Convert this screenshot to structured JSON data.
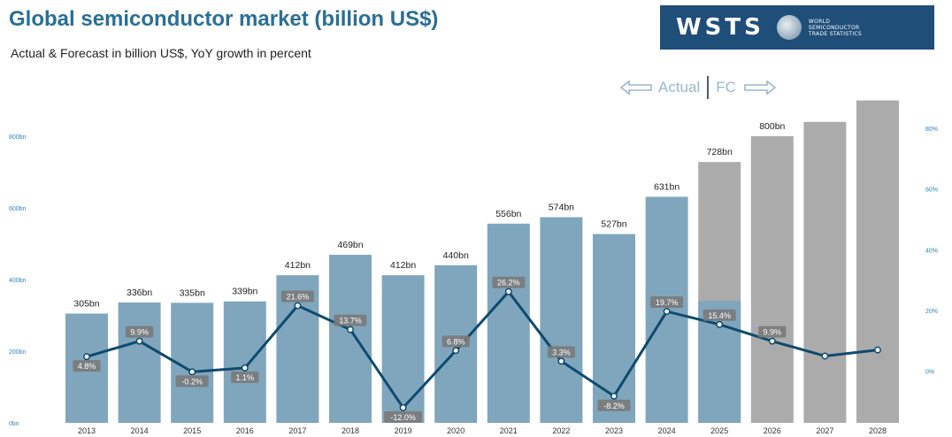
{
  "header": {
    "title": "Global semiconductor market (billion US$)",
    "subtitle": "Actual & Forecast in billion US$, YoY growth in percent"
  },
  "logo": {
    "wordmark": "WSTS",
    "text_lines": [
      "WORLD",
      "SEMICONDUCTOR",
      "TRADE STATISTICS"
    ],
    "background": "#1f4e79"
  },
  "legend": {
    "actual_label": "Actual",
    "forecast_label": "FC"
  },
  "colors": {
    "actual_bar": "#7fa6bd",
    "forecast_bar": "#ababab",
    "line": "#0f4a6e",
    "badge": "#7a7a7a",
    "axis_text": "#2e86b8"
  },
  "chart_data": {
    "type": "bar",
    "categories": [
      "2013",
      "2014",
      "2015",
      "2016",
      "2017",
      "2018",
      "2019",
      "2020",
      "2021",
      "2022",
      "2023",
      "2024",
      "2025",
      "2026",
      "2027",
      "2028"
    ],
    "series": [
      {
        "type": "bar",
        "values": [
          305,
          336,
          335,
          339,
          412,
          469,
          412,
          440,
          556,
          574,
          527,
          631,
          728,
          800,
          840,
          900
        ],
        "labels": [
          "305bn",
          "336bn",
          "335bn",
          "339bn",
          "412bn",
          "469bn",
          "412bn",
          "440bn",
          "556bn",
          "574bn",
          "527bn",
          "631bn",
          "728bn",
          "800bn",
          "",
          ""
        ],
        "forecast_from_index": 12,
        "partial_actual_2025": 340
      },
      {
        "type": "line",
        "axis": "right",
        "values": [
          4.8,
          9.9,
          -0.2,
          1.1,
          21.6,
          13.7,
          -12.0,
          6.8,
          26.2,
          3.3,
          -8.2,
          19.7,
          15.4,
          9.9,
          5.0,
          7.0
        ],
        "labels": [
          "4.8%",
          "9.9%",
          "-0.2%",
          "1.1%",
          "21.6%",
          "13.7%",
          "-12.0%",
          "6.8%",
          "26.2%",
          "3.3%",
          "-8.2%",
          "19.7%",
          "15.4%",
          "9.9%",
          "",
          ""
        ]
      }
    ],
    "y_left": {
      "ticks": [
        0,
        200,
        400,
        600,
        800
      ],
      "tick_labels": [
        "0bn",
        "200bn",
        "400bn",
        "600bn",
        "800bn"
      ],
      "ylim": [
        0,
        1000
      ]
    },
    "y_right": {
      "ticks": [
        0,
        20,
        40,
        60,
        80
      ],
      "tick_labels": [
        "0%",
        "20%",
        "40%",
        "60%",
        "80%"
      ],
      "ylim": [
        -17,
        101
      ]
    },
    "grid": false,
    "legend_position": "top-right"
  }
}
